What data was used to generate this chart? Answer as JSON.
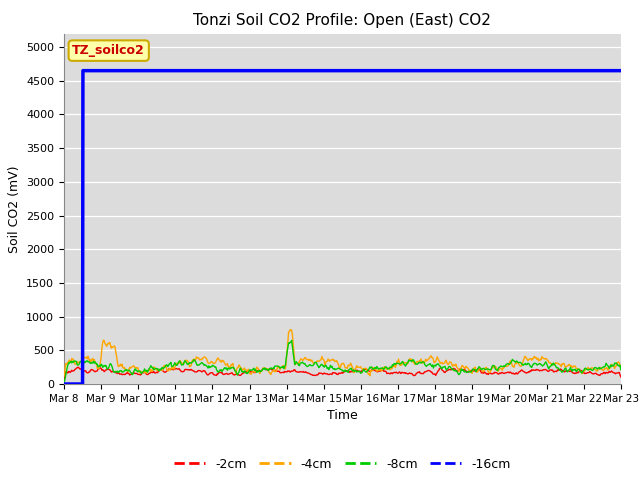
{
  "title": "Tonzi Soil CO2 Profile: Open (East) CO2",
  "ylabel": "Soil CO2 (mV)",
  "xlabel": "Time",
  "ylim": [
    0,
    5200
  ],
  "yticks": [
    0,
    500,
    1000,
    1500,
    2000,
    2500,
    3000,
    3500,
    4000,
    4500,
    5000
  ],
  "bg_color": "#dcdcdc",
  "legend_labels": [
    "-2cm",
    "-4cm",
    "-8cm",
    "-16cm"
  ],
  "legend_colors": [
    "#ff0000",
    "#ffa500",
    "#00cc00",
    "#0000ff"
  ],
  "watermark_text": "TZ_soilco2",
  "watermark_bg": "#ffffaa",
  "watermark_border": "#ccaa00",
  "n_days": 15,
  "start_day": 8,
  "end_day": 23,
  "blue_flat_value": 4650,
  "figsize": [
    6.4,
    4.8
  ],
  "dpi": 100
}
